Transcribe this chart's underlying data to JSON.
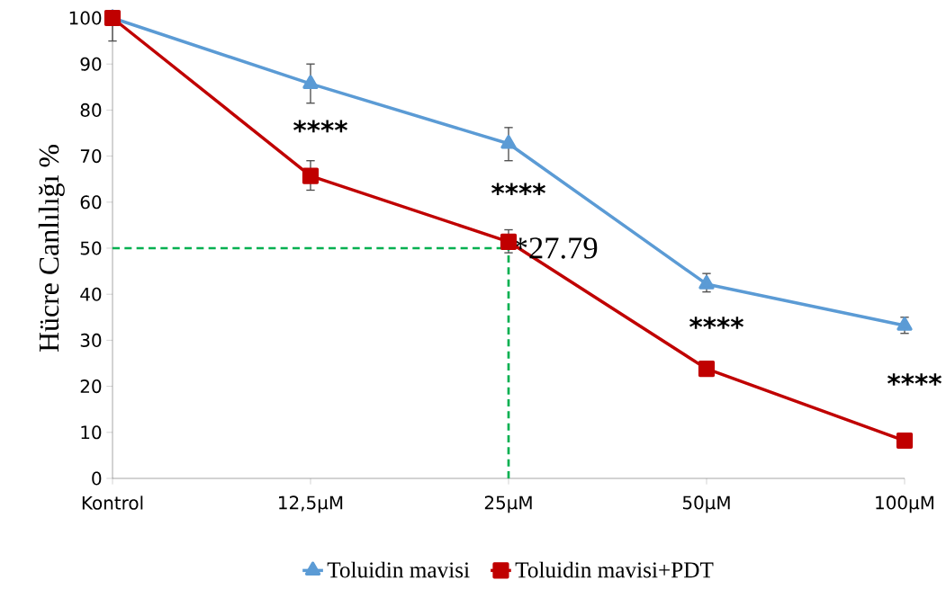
{
  "chart_data": {
    "type": "line",
    "ylabel": "Hücre Canlılığı %",
    "categories": [
      "Kontrol",
      "12,5µM",
      "25µM",
      "50µM",
      "100µM"
    ],
    "ylim": [
      0,
      100
    ],
    "yticks": [
      0,
      10,
      20,
      30,
      40,
      50,
      60,
      70,
      80,
      90,
      100
    ],
    "grid": false,
    "legend": "bottom",
    "series": [
      {
        "name": "Toluidin mavisi",
        "color": "#5b9bd5",
        "marker": "triangle",
        "values": [
          100,
          85.7,
          72.7,
          42.2,
          33.2
        ],
        "errors": [
          [
            95,
            100
          ],
          [
            81.5,
            90
          ],
          [
            69,
            76.2
          ],
          [
            40.5,
            44.5
          ],
          [
            31.5,
            35
          ]
        ]
      },
      {
        "name": "Toluidin mavisi+PDT",
        "color": "#c00000",
        "marker": "square",
        "values": [
          100,
          65.7,
          51.4,
          23.8,
          8.2
        ],
        "errors": [
          null,
          [
            62.6,
            69
          ],
          [
            49,
            54
          ],
          null,
          null
        ]
      }
    ],
    "ref_lines": [
      {
        "axis": "y",
        "value": 50,
        "color": "#00b050",
        "line_style": "dashed"
      },
      {
        "axis": "x",
        "value": "25µM",
        "color": "#00b050",
        "line_style": "dashed"
      }
    ],
    "annotations": [
      "****",
      "****",
      {
        "text": "*27.79",
        "x": "25µM",
        "y": 50
      },
      "****",
      "****"
    ]
  }
}
